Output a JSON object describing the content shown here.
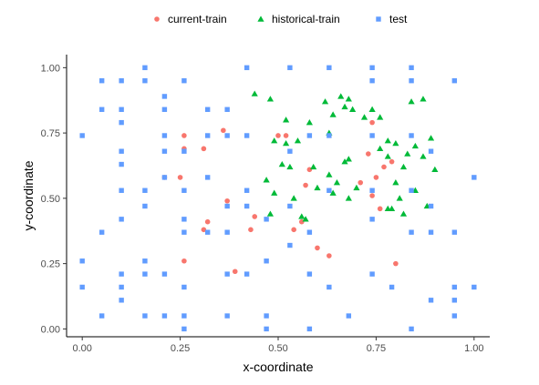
{
  "chart_data": {
    "type": "scatter",
    "xlabel": "x-coordinate",
    "ylabel": "y-coordinate",
    "xlim": [
      -0.04,
      1.04
    ],
    "ylim": [
      -0.03,
      1.05
    ],
    "x_ticks": [
      0.0,
      0.25,
      0.5,
      0.75,
      1.0
    ],
    "x_tick_labels": [
      "0.00",
      "0.25",
      "0.50",
      "0.75",
      "1.00"
    ],
    "y_ticks": [
      0.0,
      0.25,
      0.5,
      0.75,
      1.0
    ],
    "y_tick_labels": [
      "0.00",
      "0.25",
      "0.50",
      "0.75",
      "1.00"
    ],
    "grid": false,
    "legend_position": "top",
    "series": [
      {
        "name": "current-train",
        "color": "#F8766D",
        "shape": "circle",
        "points": [
          [
            0.26,
            0.74
          ],
          [
            0.26,
            0.69
          ],
          [
            0.31,
            0.69
          ],
          [
            0.36,
            0.76
          ],
          [
            0.21,
            0.58
          ],
          [
            0.25,
            0.58
          ],
          [
            0.5,
            0.74
          ],
          [
            0.52,
            0.74
          ],
          [
            0.58,
            0.61
          ],
          [
            0.57,
            0.55
          ],
          [
            0.73,
            0.67
          ],
          [
            0.74,
            0.79
          ],
          [
            0.75,
            0.58
          ],
          [
            0.79,
            0.64
          ],
          [
            0.71,
            0.56
          ],
          [
            0.77,
            0.62
          ],
          [
            0.74,
            0.51
          ],
          [
            0.76,
            0.46
          ],
          [
            0.54,
            0.38
          ],
          [
            0.44,
            0.43
          ],
          [
            0.56,
            0.41
          ],
          [
            0.37,
            0.49
          ],
          [
            0.32,
            0.41
          ],
          [
            0.31,
            0.38
          ],
          [
            0.6,
            0.31
          ],
          [
            0.63,
            0.28
          ],
          [
            0.43,
            0.38
          ],
          [
            0.39,
            0.22
          ],
          [
            0.26,
            0.26
          ],
          [
            0.8,
            0.25
          ]
        ]
      },
      {
        "name": "historical-train",
        "color": "#00BA38",
        "shape": "triangle",
        "points": [
          [
            0.44,
            0.9
          ],
          [
            0.48,
            0.88
          ],
          [
            0.62,
            0.87
          ],
          [
            0.66,
            0.89
          ],
          [
            0.68,
            0.88
          ],
          [
            0.69,
            0.84
          ],
          [
            0.72,
            0.81
          ],
          [
            0.74,
            0.84
          ],
          [
            0.76,
            0.81
          ],
          [
            0.84,
            0.87
          ],
          [
            0.87,
            0.88
          ],
          [
            0.52,
            0.8
          ],
          [
            0.58,
            0.79
          ],
          [
            0.64,
            0.82
          ],
          [
            0.67,
            0.85
          ],
          [
            0.49,
            0.72
          ],
          [
            0.52,
            0.71
          ],
          [
            0.55,
            0.72
          ],
          [
            0.63,
            0.75
          ],
          [
            0.78,
            0.72
          ],
          [
            0.8,
            0.71
          ],
          [
            0.85,
            0.7
          ],
          [
            0.89,
            0.73
          ],
          [
            0.83,
            0.67
          ],
          [
            0.87,
            0.66
          ],
          [
            0.76,
            0.69
          ],
          [
            0.78,
            0.66
          ],
          [
            0.68,
            0.65
          ],
          [
            0.51,
            0.63
          ],
          [
            0.53,
            0.62
          ],
          [
            0.59,
            0.62
          ],
          [
            0.63,
            0.59
          ],
          [
            0.65,
            0.56
          ],
          [
            0.67,
            0.64
          ],
          [
            0.82,
            0.62
          ],
          [
            0.9,
            0.61
          ],
          [
            0.47,
            0.57
          ],
          [
            0.49,
            0.52
          ],
          [
            0.54,
            0.5
          ],
          [
            0.6,
            0.54
          ],
          [
            0.64,
            0.52
          ],
          [
            0.68,
            0.5
          ],
          [
            0.7,
            0.54
          ],
          [
            0.8,
            0.56
          ],
          [
            0.81,
            0.5
          ],
          [
            0.78,
            0.46
          ],
          [
            0.85,
            0.53
          ],
          [
            0.88,
            0.47
          ],
          [
            0.48,
            0.44
          ],
          [
            0.56,
            0.43
          ],
          [
            0.57,
            0.42
          ],
          [
            0.79,
            0.46
          ],
          [
            0.82,
            0.44
          ]
        ]
      },
      {
        "name": "test",
        "color": "#619CFF",
        "shape": "square",
        "points": [
          [
            0.05,
            0.95
          ],
          [
            0.1,
            0.95
          ],
          [
            0.16,
            1.0
          ],
          [
            0.16,
            0.95
          ],
          [
            0.26,
            0.95
          ],
          [
            0.42,
            1.0
          ],
          [
            0.53,
            1.0
          ],
          [
            0.63,
            1.0
          ],
          [
            0.74,
            1.0
          ],
          [
            0.84,
            1.0
          ],
          [
            0.74,
            0.95
          ],
          [
            0.84,
            0.95
          ],
          [
            0.95,
            0.95
          ],
          [
            0.05,
            0.84
          ],
          [
            0.1,
            0.84
          ],
          [
            0.1,
            0.79
          ],
          [
            0.21,
            0.89
          ],
          [
            0.21,
            0.84
          ],
          [
            0.32,
            0.84
          ],
          [
            0.37,
            0.84
          ],
          [
            0.0,
            0.74
          ],
          [
            0.1,
            0.68
          ],
          [
            0.1,
            0.63
          ],
          [
            0.21,
            0.74
          ],
          [
            0.21,
            0.68
          ],
          [
            0.26,
            0.68
          ],
          [
            0.32,
            0.74
          ],
          [
            0.37,
            0.74
          ],
          [
            0.42,
            0.74
          ],
          [
            0.53,
            0.68
          ],
          [
            0.58,
            0.74
          ],
          [
            0.63,
            0.74
          ],
          [
            0.74,
            0.74
          ],
          [
            0.84,
            0.74
          ],
          [
            0.89,
            0.68
          ],
          [
            0.1,
            0.53
          ],
          [
            0.16,
            0.53
          ],
          [
            0.16,
            0.47
          ],
          [
            0.21,
            0.58
          ],
          [
            0.26,
            0.53
          ],
          [
            0.32,
            0.58
          ],
          [
            0.37,
            0.47
          ],
          [
            0.42,
            0.53
          ],
          [
            0.42,
            0.47
          ],
          [
            0.53,
            0.47
          ],
          [
            0.63,
            0.53
          ],
          [
            0.74,
            0.53
          ],
          [
            0.84,
            0.53
          ],
          [
            0.89,
            0.47
          ],
          [
            1.0,
            0.58
          ],
          [
            0.1,
            0.42
          ],
          [
            0.05,
            0.37
          ],
          [
            0.26,
            0.42
          ],
          [
            0.26,
            0.37
          ],
          [
            0.32,
            0.37
          ],
          [
            0.37,
            0.37
          ],
          [
            0.47,
            0.42
          ],
          [
            0.53,
            0.32
          ],
          [
            0.58,
            0.37
          ],
          [
            0.74,
            0.42
          ],
          [
            0.84,
            0.37
          ],
          [
            0.89,
            0.37
          ],
          [
            0.95,
            0.37
          ],
          [
            0.0,
            0.26
          ],
          [
            0.0,
            0.16
          ],
          [
            0.1,
            0.21
          ],
          [
            0.1,
            0.16
          ],
          [
            0.1,
            0.11
          ],
          [
            0.16,
            0.26
          ],
          [
            0.16,
            0.21
          ],
          [
            0.21,
            0.21
          ],
          [
            0.26,
            0.16
          ],
          [
            0.37,
            0.21
          ],
          [
            0.42,
            0.21
          ],
          [
            0.47,
            0.26
          ],
          [
            0.58,
            0.21
          ],
          [
            0.63,
            0.16
          ],
          [
            0.74,
            0.21
          ],
          [
            0.79,
            0.16
          ],
          [
            0.89,
            0.11
          ],
          [
            0.95,
            0.11
          ],
          [
            0.95,
            0.16
          ],
          [
            1.0,
            0.16
          ],
          [
            0.05,
            0.05
          ],
          [
            0.16,
            0.05
          ],
          [
            0.21,
            0.05
          ],
          [
            0.26,
            0.05
          ],
          [
            0.26,
            0.0
          ],
          [
            0.37,
            0.05
          ],
          [
            0.47,
            0.05
          ],
          [
            0.47,
            0.0
          ],
          [
            0.58,
            0.0
          ],
          [
            0.68,
            0.05
          ],
          [
            0.84,
            0.0
          ],
          [
            0.95,
            0.05
          ]
        ]
      }
    ]
  }
}
